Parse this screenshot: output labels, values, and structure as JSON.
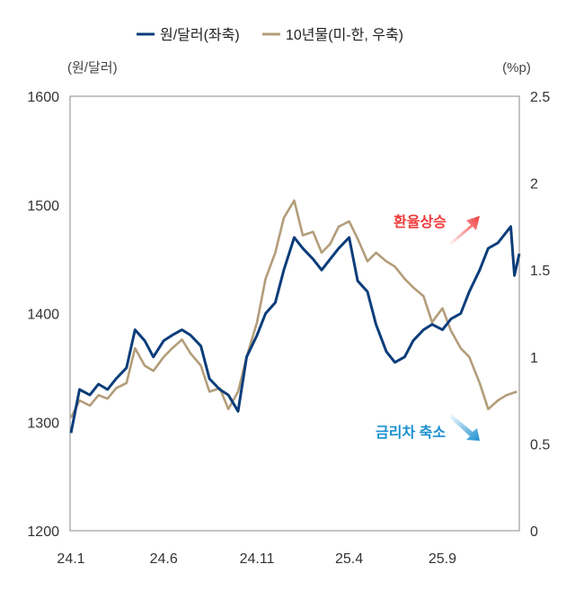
{
  "chart_data": {
    "type": "line",
    "legend": {
      "position": "top"
    },
    "left_axis": {
      "unit": "(원/달러)",
      "ticks": [
        "1600",
        "1500",
        "1400",
        "1300",
        "1200"
      ],
      "range": [
        1200,
        1600
      ]
    },
    "right_axis": {
      "unit": "(%p)",
      "ticks": [
        "2.5",
        "2",
        "1.5",
        "1",
        "0.5",
        "0"
      ],
      "range": [
        0,
        2.5
      ]
    },
    "x_axis": {
      "ticks": [
        "24.1",
        "24.6",
        "24.11",
        "25.4",
        "25.9"
      ],
      "range": [
        "2024-01-01",
        "2026-01-05"
      ]
    },
    "grid": false,
    "annotations": [
      {
        "text": "환율상승",
        "color": "#ef3b3b",
        "direction": "up"
      },
      {
        "text": "금리차 축소",
        "color": "#1a8fd1",
        "direction": "down"
      }
    ],
    "series": [
      {
        "name": "원/달러(좌축)",
        "axis": "left",
        "color": "#0b3d7a",
        "x": [
          "2024-01-01",
          "2024-01-15",
          "2024-02-01",
          "2024-02-15",
          "2024-03-01",
          "2024-03-15",
          "2024-04-01",
          "2024-04-15",
          "2024-05-01",
          "2024-05-15",
          "2024-06-01",
          "2024-06-15",
          "2024-07-01",
          "2024-07-15",
          "2024-08-01",
          "2024-08-15",
          "2024-09-01",
          "2024-09-15",
          "2024-10-01",
          "2024-10-15",
          "2024-11-01",
          "2024-11-15",
          "2024-12-01",
          "2024-12-15",
          "2025-01-01",
          "2025-01-15",
          "2025-02-01",
          "2025-02-15",
          "2025-03-01",
          "2025-03-15",
          "2025-04-01",
          "2025-04-15",
          "2025-05-01",
          "2025-05-15",
          "2025-06-01",
          "2025-06-15",
          "2025-07-01",
          "2025-07-15",
          "2025-08-01",
          "2025-08-15",
          "2025-09-01",
          "2025-09-15",
          "2025-10-01",
          "2025-10-15",
          "2025-11-01",
          "2025-11-15",
          "2025-12-01",
          "2025-12-15",
          "2025-12-22",
          "2025-12-28",
          "2026-01-05"
        ],
        "values": [
          1290,
          1330,
          1325,
          1335,
          1330,
          1340,
          1350,
          1385,
          1375,
          1360,
          1375,
          1380,
          1385,
          1380,
          1370,
          1340,
          1330,
          1325,
          1310,
          1360,
          1380,
          1400,
          1410,
          1440,
          1470,
          1460,
          1450,
          1440,
          1450,
          1460,
          1470,
          1430,
          1420,
          1390,
          1365,
          1355,
          1360,
          1375,
          1385,
          1390,
          1385,
          1395,
          1400,
          1420,
          1440,
          1460,
          1465,
          1475,
          1480,
          1435,
          1455
        ]
      },
      {
        "name": "10년물(미-한, 우축)",
        "axis": "right",
        "color": "#b39d7a",
        "x": [
          "2024-01-01",
          "2024-01-15",
          "2024-02-01",
          "2024-02-15",
          "2024-03-01",
          "2024-03-15",
          "2024-04-01",
          "2024-04-15",
          "2024-05-01",
          "2024-05-15",
          "2024-06-01",
          "2024-06-15",
          "2024-07-01",
          "2024-07-15",
          "2024-08-01",
          "2024-08-15",
          "2024-09-01",
          "2024-09-15",
          "2024-10-01",
          "2024-10-15",
          "2024-11-01",
          "2024-11-15",
          "2024-12-01",
          "2024-12-15",
          "2025-01-01",
          "2025-01-15",
          "2025-02-01",
          "2025-02-15",
          "2025-03-01",
          "2025-03-15",
          "2025-04-01",
          "2025-04-15",
          "2025-05-01",
          "2025-05-15",
          "2025-06-01",
          "2025-06-15",
          "2025-07-01",
          "2025-07-15",
          "2025-08-01",
          "2025-08-15",
          "2025-09-01",
          "2025-09-15",
          "2025-10-01",
          "2025-10-15",
          "2025-11-01",
          "2025-11-15",
          "2025-12-01",
          "2025-12-15",
          "2026-01-01"
        ],
        "values": [
          0.65,
          0.75,
          0.72,
          0.78,
          0.76,
          0.82,
          0.85,
          1.05,
          0.95,
          0.92,
          1.0,
          1.05,
          1.1,
          1.02,
          0.95,
          0.8,
          0.82,
          0.7,
          0.8,
          1.0,
          1.2,
          1.45,
          1.6,
          1.8,
          1.9,
          1.7,
          1.72,
          1.6,
          1.65,
          1.75,
          1.78,
          1.68,
          1.55,
          1.6,
          1.55,
          1.52,
          1.45,
          1.4,
          1.35,
          1.2,
          1.28,
          1.15,
          1.05,
          1.0,
          0.85,
          0.7,
          0.75,
          0.78,
          0.8
        ]
      }
    ]
  }
}
